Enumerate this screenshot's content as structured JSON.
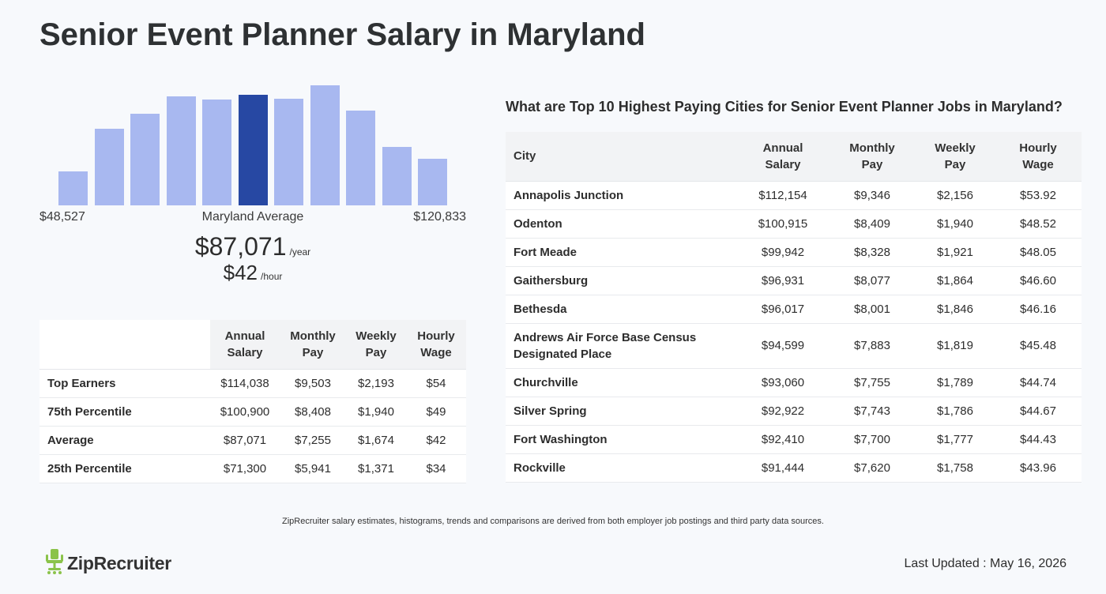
{
  "page": {
    "title": "Senior Event Planner Salary in Maryland"
  },
  "histogram": {
    "bar_color": "#a8b8f0",
    "highlight_color": "#2748a3",
    "bars": [
      {
        "level": 0.28,
        "highlight": false
      },
      {
        "level": 0.64,
        "highlight": false
      },
      {
        "level": 0.76,
        "highlight": false
      },
      {
        "level": 0.91,
        "highlight": false
      },
      {
        "level": 0.88,
        "highlight": false
      },
      {
        "level": 0.92,
        "highlight": true
      },
      {
        "level": 0.89,
        "highlight": false
      },
      {
        "level": 1.0,
        "highlight": false
      },
      {
        "level": 0.79,
        "highlight": false
      },
      {
        "level": 0.49,
        "highlight": false
      },
      {
        "level": 0.39,
        "highlight": false
      }
    ],
    "min_label": "$48,527",
    "mid_label": "Maryland Average",
    "max_label": "$120,833"
  },
  "average": {
    "year_value": "$87,071",
    "year_unit": "/year",
    "hour_value": "$42",
    "hour_unit": "/hour"
  },
  "percentile_table": {
    "headers": [
      [
        "Annual",
        "Salary"
      ],
      [
        "Monthly",
        "Pay"
      ],
      [
        "Weekly",
        "Pay"
      ],
      [
        "Hourly",
        "Wage"
      ]
    ],
    "rows": [
      {
        "label": "Top Earners",
        "annual": "$114,038",
        "monthly": "$9,503",
        "weekly": "$2,193",
        "hourly": "$54"
      },
      {
        "label": "75th Percentile",
        "annual": "$100,900",
        "monthly": "$8,408",
        "weekly": "$1,940",
        "hourly": "$49"
      },
      {
        "label": "Average",
        "annual": "$87,071",
        "monthly": "$7,255",
        "weekly": "$1,674",
        "hourly": "$42"
      },
      {
        "label": "25th Percentile",
        "annual": "$71,300",
        "monthly": "$5,941",
        "weekly": "$1,371",
        "hourly": "$34"
      }
    ]
  },
  "cities": {
    "title": "What are Top 10 Highest Paying Cities for Senior Event Planner Jobs in Maryland?",
    "headers": {
      "city": "City",
      "annual": [
        "Annual",
        "Salary"
      ],
      "monthly": [
        "Monthly",
        "Pay"
      ],
      "weekly": [
        "Weekly",
        "Pay"
      ],
      "hourly": [
        "Hourly",
        "Wage"
      ]
    },
    "rows": [
      {
        "city": [
          "Annapolis Junction"
        ],
        "annual": "$112,154",
        "monthly": "$9,346",
        "weekly": "$2,156",
        "hourly": "$53.92"
      },
      {
        "city": [
          "Odenton"
        ],
        "annual": "$100,915",
        "monthly": "$8,409",
        "weekly": "$1,940",
        "hourly": "$48.52"
      },
      {
        "city": [
          "Fort Meade"
        ],
        "annual": "$99,942",
        "monthly": "$8,328",
        "weekly": "$1,921",
        "hourly": "$48.05"
      },
      {
        "city": [
          "Gaithersburg"
        ],
        "annual": "$96,931",
        "monthly": "$8,077",
        "weekly": "$1,864",
        "hourly": "$46.60"
      },
      {
        "city": [
          "Bethesda"
        ],
        "annual": "$96,017",
        "monthly": "$8,001",
        "weekly": "$1,846",
        "hourly": "$46.16"
      },
      {
        "city": [
          "Andrews Air Force Base Census",
          "Designated Place"
        ],
        "annual": "$94,599",
        "monthly": "$7,883",
        "weekly": "$1,819",
        "hourly": "$45.48"
      },
      {
        "city": [
          "Churchville"
        ],
        "annual": "$93,060",
        "monthly": "$7,755",
        "weekly": "$1,789",
        "hourly": "$44.74"
      },
      {
        "city": [
          "Silver Spring"
        ],
        "annual": "$92,922",
        "monthly": "$7,743",
        "weekly": "$1,786",
        "hourly": "$44.67"
      },
      {
        "city": [
          "Fort Washington"
        ],
        "annual": "$92,410",
        "monthly": "$7,700",
        "weekly": "$1,777",
        "hourly": "$44.43"
      },
      {
        "city": [
          "Rockville"
        ],
        "annual": "$91,444",
        "monthly": "$7,620",
        "weekly": "$1,758",
        "hourly": "$43.96"
      }
    ]
  },
  "footer": {
    "disclaimer": "ZipRecruiter salary estimates, histograms, trends and comparisons are derived from both employer job postings and third party data sources.",
    "logo_text": "ZipRecruiter",
    "logo_color": "#8bc34a",
    "last_updated": "Last Updated : May 16, 2026"
  }
}
